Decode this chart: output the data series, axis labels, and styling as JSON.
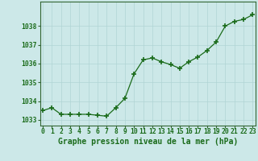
{
  "x": [
    0,
    1,
    2,
    3,
    4,
    5,
    6,
    7,
    8,
    9,
    10,
    11,
    12,
    13,
    14,
    15,
    16,
    17,
    18,
    19,
    20,
    21,
    22,
    23
  ],
  "y": [
    1033.5,
    1033.65,
    1033.3,
    1033.3,
    1033.3,
    1033.3,
    1033.25,
    1033.2,
    1033.65,
    1034.15,
    1035.45,
    1036.2,
    1036.3,
    1036.1,
    1035.95,
    1035.75,
    1036.1,
    1036.35,
    1036.7,
    1037.15,
    1038.0,
    1038.25,
    1038.35,
    1038.6
  ],
  "line_color": "#1a6b1a",
  "marker_color": "#1a6b1a",
  "bg_color": "#cce8e8",
  "grid_color": "#b0d4d4",
  "xlabel": "Graphe pression niveau de la mer (hPa)",
  "xlim": [
    -0.3,
    23.3
  ],
  "ylim": [
    1032.7,
    1039.3
  ],
  "yticks": [
    1033,
    1034,
    1035,
    1036,
    1037,
    1038
  ],
  "xticks": [
    0,
    1,
    2,
    3,
    4,
    5,
    6,
    7,
    8,
    9,
    10,
    11,
    12,
    13,
    14,
    15,
    16,
    17,
    18,
    19,
    20,
    21,
    22,
    23
  ],
  "tick_label_fontsize": 5.8,
  "xlabel_fontsize": 7.0,
  "spine_color": "#336633",
  "axis_bg": "#cce8e8"
}
